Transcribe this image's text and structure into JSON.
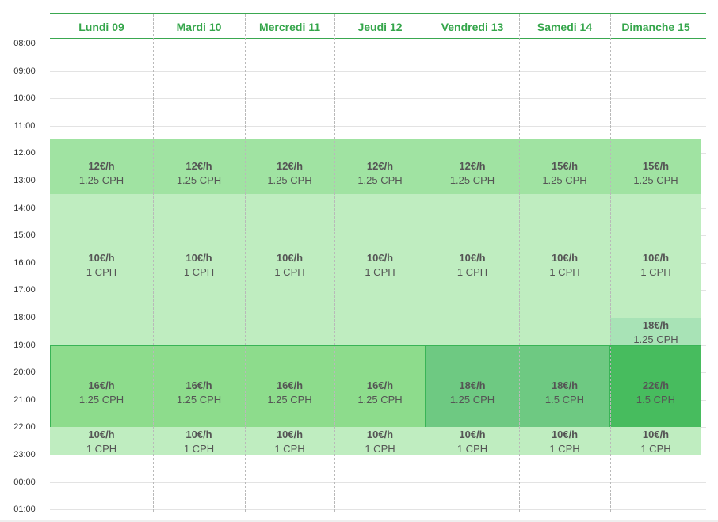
{
  "days": [
    {
      "label": "Lundi 09"
    },
    {
      "label": "Mardi 10"
    },
    {
      "label": "Mercredi 11"
    },
    {
      "label": "Jeudi 12"
    },
    {
      "label": "Vendredi 13"
    },
    {
      "label": "Samedi 14"
    },
    {
      "label": "Dimanche 15"
    }
  ],
  "hours": [
    "08:00",
    "09:00",
    "10:00",
    "11:00",
    "12:00",
    "13:00",
    "14:00",
    "15:00",
    "16:00",
    "17:00",
    "18:00",
    "19:00",
    "20:00",
    "21:00",
    "22:00",
    "23:00",
    "00:00",
    "01:00"
  ],
  "colors": {
    "accent": "#35a64b",
    "light": "#bfedc0",
    "medium": "#a0e3a2",
    "strong": "#8ddc8c",
    "darker": "#6ec982",
    "darkest": "#47bc5e",
    "mid_evening": "#a8e3b6"
  },
  "blocks": [
    {
      "start": 11.5,
      "end": 21.2,
      "col_from": 0,
      "col_to": 7,
      "color": "light",
      "dark": false
    },
    {
      "start": 11.5,
      "end": 13.5,
      "col_from": 0,
      "col_to": 7,
      "color": "medium",
      "dark": false
    },
    {
      "start": 18.0,
      "end": 19.0,
      "col_from": 6,
      "col_to": 7,
      "color": "mid_evening",
      "dark": false
    },
    {
      "start": 19.0,
      "end": 22.0,
      "col_from": 0,
      "col_to": 4,
      "color": "strong",
      "dark": true
    },
    {
      "start": 19.0,
      "end": 22.0,
      "col_from": 4,
      "col_to": 6,
      "color": "darker",
      "dark": true
    },
    {
      "start": 19.0,
      "end": 22.0,
      "col_from": 6,
      "col_to": 7,
      "color": "darkest",
      "dark": true
    },
    {
      "start": 22.0,
      "end": 23.0,
      "col_from": 0,
      "col_to": 7,
      "color": "light",
      "dark": false
    }
  ],
  "cells": [
    {
      "col": 0,
      "center": 12.75,
      "price": "12€/h",
      "cph": "1.25 CPH"
    },
    {
      "col": 1,
      "center": 12.75,
      "price": "12€/h",
      "cph": "1.25 CPH"
    },
    {
      "col": 2,
      "center": 12.75,
      "price": "12€/h",
      "cph": "1.25 CPH"
    },
    {
      "col": 3,
      "center": 12.75,
      "price": "12€/h",
      "cph": "1.25 CPH"
    },
    {
      "col": 4,
      "center": 12.75,
      "price": "12€/h",
      "cph": "1.25 CPH"
    },
    {
      "col": 5,
      "center": 12.75,
      "price": "15€/h",
      "cph": "1.25 CPH"
    },
    {
      "col": 6,
      "center": 12.75,
      "price": "15€/h",
      "cph": "1.25 CPH"
    },
    {
      "col": 0,
      "center": 16.1,
      "price": "10€/h",
      "cph": "1 CPH"
    },
    {
      "col": 1,
      "center": 16.1,
      "price": "10€/h",
      "cph": "1 CPH"
    },
    {
      "col": 2,
      "center": 16.1,
      "price": "10€/h",
      "cph": "1 CPH"
    },
    {
      "col": 3,
      "center": 16.1,
      "price": "10€/h",
      "cph": "1 CPH"
    },
    {
      "col": 4,
      "center": 16.1,
      "price": "10€/h",
      "cph": "1 CPH"
    },
    {
      "col": 5,
      "center": 16.1,
      "price": "10€/h",
      "cph": "1 CPH"
    },
    {
      "col": 6,
      "center": 16.1,
      "price": "10€/h",
      "cph": "1 CPH"
    },
    {
      "col": 6,
      "center": 18.55,
      "price": "18€/h",
      "cph": "1.25 CPH"
    },
    {
      "col": 0,
      "center": 20.75,
      "price": "16€/h",
      "cph": "1.25 CPH"
    },
    {
      "col": 1,
      "center": 20.75,
      "price": "16€/h",
      "cph": "1.25 CPH"
    },
    {
      "col": 2,
      "center": 20.75,
      "price": "16€/h",
      "cph": "1.25 CPH"
    },
    {
      "col": 3,
      "center": 20.75,
      "price": "16€/h",
      "cph": "1.25 CPH"
    },
    {
      "col": 4,
      "center": 20.75,
      "price": "18€/h",
      "cph": "1.25 CPH"
    },
    {
      "col": 5,
      "center": 20.75,
      "price": "18€/h",
      "cph": "1.5 CPH"
    },
    {
      "col": 6,
      "center": 20.75,
      "price": "22€/h",
      "cph": "1.5 CPH"
    },
    {
      "col": 0,
      "center": 22.55,
      "price": "10€/h",
      "cph": "1 CPH"
    },
    {
      "col": 1,
      "center": 22.55,
      "price": "10€/h",
      "cph": "1 CPH"
    },
    {
      "col": 2,
      "center": 22.55,
      "price": "10€/h",
      "cph": "1 CPH"
    },
    {
      "col": 3,
      "center": 22.55,
      "price": "10€/h",
      "cph": "1 CPH"
    },
    {
      "col": 4,
      "center": 22.55,
      "price": "10€/h",
      "cph": "1 CPH"
    },
    {
      "col": 5,
      "center": 22.55,
      "price": "10€/h",
      "cph": "1 CPH"
    },
    {
      "col": 6,
      "center": 22.55,
      "price": "10€/h",
      "cph": "1 CPH"
    }
  ]
}
